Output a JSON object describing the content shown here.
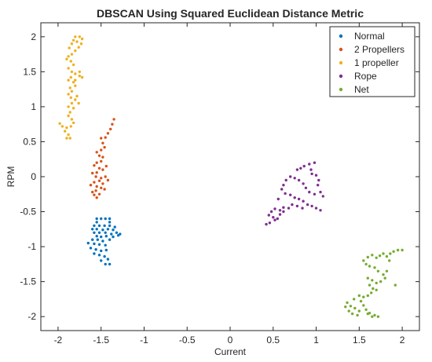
{
  "chart_data": {
    "type": "scatter",
    "title": "DBSCAN Using Squared Euclidean Distance Metric",
    "xlabel": "Current",
    "ylabel": "RPM",
    "xlim": [
      -2.2,
      2.2
    ],
    "ylim": [
      -2.2,
      2.2
    ],
    "xticks": [
      -2,
      -1.5,
      -1,
      -0.5,
      0,
      0.5,
      1,
      1.5,
      2
    ],
    "yticks": [
      -2,
      -1.5,
      -1,
      -0.5,
      0,
      0.5,
      1,
      1.5,
      2
    ],
    "xtick_labels": [
      "-2",
      "-1.5",
      "-1",
      "-0.5",
      "0",
      "0.5",
      "1",
      "1.5",
      "2"
    ],
    "ytick_labels": [
      "-2",
      "-1.5",
      "-1",
      "-0.5",
      "0",
      "0.5",
      "1",
      "1.5",
      "2"
    ],
    "grid": false,
    "legend_position": "top-right",
    "series": [
      {
        "name": "Normal",
        "color": "#0072BD",
        "points": [
          [
            -1.55,
            -0.6
          ],
          [
            -1.5,
            -0.6
          ],
          [
            -1.45,
            -0.6
          ],
          [
            -1.4,
            -0.6
          ],
          [
            -1.55,
            -0.65
          ],
          [
            -1.4,
            -0.65
          ],
          [
            -1.58,
            -0.7
          ],
          [
            -1.52,
            -0.7
          ],
          [
            -1.46,
            -0.7
          ],
          [
            -1.4,
            -0.7
          ],
          [
            -1.34,
            -0.72
          ],
          [
            -1.6,
            -0.75
          ],
          [
            -1.55,
            -0.75
          ],
          [
            -1.48,
            -0.76
          ],
          [
            -1.42,
            -0.75
          ],
          [
            -1.36,
            -0.76
          ],
          [
            -1.58,
            -0.8
          ],
          [
            -1.52,
            -0.8
          ],
          [
            -1.45,
            -0.8
          ],
          [
            -1.38,
            -0.82
          ],
          [
            -1.32,
            -0.8
          ],
          [
            -1.28,
            -0.82
          ],
          [
            -1.55,
            -0.85
          ],
          [
            -1.5,
            -0.86
          ],
          [
            -1.44,
            -0.85
          ],
          [
            -1.36,
            -0.86
          ],
          [
            -1.3,
            -0.84
          ],
          [
            -1.6,
            -0.9
          ],
          [
            -1.54,
            -0.9
          ],
          [
            -1.48,
            -0.92
          ],
          [
            -1.4,
            -0.9
          ],
          [
            -1.65,
            -0.95
          ],
          [
            -1.58,
            -0.96
          ],
          [
            -1.52,
            -0.97
          ],
          [
            -1.45,
            -0.98
          ],
          [
            -1.62,
            -1.02
          ],
          [
            -1.56,
            -1.04
          ],
          [
            -1.5,
            -1.06
          ],
          [
            -1.44,
            -1.05
          ],
          [
            -1.58,
            -1.1
          ],
          [
            -1.52,
            -1.12
          ],
          [
            -1.46,
            -1.14
          ],
          [
            -1.42,
            -1.18
          ],
          [
            -1.5,
            -1.2
          ],
          [
            -1.45,
            -1.25
          ],
          [
            -1.4,
            -1.25
          ]
        ]
      },
      {
        "name": "2 Propellers",
        "color": "#D95319",
        "points": [
          [
            -1.35,
            0.82
          ],
          [
            -1.37,
            0.75
          ],
          [
            -1.39,
            0.68
          ],
          [
            -1.42,
            0.62
          ],
          [
            -1.45,
            0.56
          ],
          [
            -1.5,
            0.55
          ],
          [
            -1.48,
            0.48
          ],
          [
            -1.46,
            0.42
          ],
          [
            -1.5,
            0.38
          ],
          [
            -1.55,
            0.35
          ],
          [
            -1.52,
            0.3
          ],
          [
            -1.48,
            0.28
          ],
          [
            -1.5,
            0.22
          ],
          [
            -1.55,
            0.2
          ],
          [
            -1.58,
            0.16
          ],
          [
            -1.52,
            0.12
          ],
          [
            -1.48,
            0.1
          ],
          [
            -1.55,
            0.06
          ],
          [
            -1.6,
            0.05
          ],
          [
            -1.56,
            0.0
          ],
          [
            -1.5,
            -0.02
          ],
          [
            -1.45,
            0.0
          ],
          [
            -1.52,
            -0.06
          ],
          [
            -1.58,
            -0.08
          ],
          [
            -1.62,
            -0.12
          ],
          [
            -1.55,
            -0.14
          ],
          [
            -1.5,
            -0.16
          ],
          [
            -1.48,
            -0.1
          ],
          [
            -1.56,
            -0.2
          ],
          [
            -1.6,
            -0.22
          ],
          [
            -1.58,
            -0.26
          ],
          [
            -1.55,
            -0.3
          ],
          [
            -1.52,
            -0.25
          ],
          [
            -1.46,
            -0.18
          ],
          [
            -1.42,
            -0.05
          ],
          [
            -1.44,
            0.15
          ]
        ]
      },
      {
        "name": "1 propeller",
        "color": "#EDB120",
        "points": [
          [
            -1.8,
            2.0
          ],
          [
            -1.75,
            2.0
          ],
          [
            -1.72,
            1.97
          ],
          [
            -1.78,
            1.93
          ],
          [
            -1.73,
            1.9
          ],
          [
            -1.76,
            1.85
          ],
          [
            -1.8,
            1.8
          ],
          [
            -1.84,
            1.75
          ],
          [
            -1.88,
            1.72
          ],
          [
            -1.9,
            1.68
          ],
          [
            -1.85,
            1.65
          ],
          [
            -1.82,
            1.6
          ],
          [
            -1.88,
            1.55
          ],
          [
            -1.84,
            1.5
          ],
          [
            -1.8,
            1.47
          ],
          [
            -1.75,
            1.44
          ],
          [
            -1.85,
            1.42
          ],
          [
            -1.88,
            1.38
          ],
          [
            -1.82,
            1.35
          ],
          [
            -1.8,
            1.3
          ],
          [
            -1.86,
            1.27
          ],
          [
            -1.84,
            1.22
          ],
          [
            -1.88,
            1.18
          ],
          [
            -1.85,
            1.13
          ],
          [
            -1.8,
            1.1
          ],
          [
            -1.84,
            1.05
          ],
          [
            -1.88,
            1.0
          ],
          [
            -1.82,
            0.98
          ],
          [
            -1.86,
            0.92
          ],
          [
            -1.88,
            0.87
          ],
          [
            -1.84,
            0.82
          ],
          [
            -1.82,
            0.77
          ],
          [
            -1.85,
            0.72
          ],
          [
            -1.9,
            0.7
          ],
          [
            -1.95,
            0.72
          ],
          [
            -1.98,
            0.76
          ],
          [
            -1.92,
            0.65
          ],
          [
            -1.88,
            0.6
          ],
          [
            -1.86,
            0.55
          ],
          [
            -1.9,
            0.55
          ],
          [
            -1.75,
            1.5
          ],
          [
            -1.72,
            1.42
          ],
          [
            -1.8,
            1.38
          ],
          [
            -1.84,
            1.9
          ],
          [
            -1.87,
            1.84
          ],
          [
            -1.82,
            1.95
          ],
          [
            -1.78,
            1.15
          ],
          [
            -1.76,
            1.05
          ]
        ]
      },
      {
        "name": "Rope",
        "color": "#7E2F8E",
        "points": [
          [
            0.98,
            0.2
          ],
          [
            0.92,
            0.18
          ],
          [
            0.86,
            0.15
          ],
          [
            0.82,
            0.12
          ],
          [
            0.78,
            0.1
          ],
          [
            0.94,
            0.1
          ],
          [
            0.95,
            0.04
          ],
          [
            1.0,
            0.02
          ],
          [
            1.03,
            -0.05
          ],
          [
            1.02,
            -0.12
          ],
          [
            1.05,
            -0.22
          ],
          [
            1.08,
            -0.28
          ],
          [
            0.98,
            -0.25
          ],
          [
            0.92,
            -0.22
          ],
          [
            0.88,
            -0.16
          ],
          [
            0.85,
            -0.1
          ],
          [
            0.8,
            -0.05
          ],
          [
            0.75,
            -0.02
          ],
          [
            0.7,
            0.0
          ],
          [
            0.65,
            -0.05
          ],
          [
            0.62,
            -0.12
          ],
          [
            0.6,
            -0.18
          ],
          [
            0.64,
            -0.24
          ],
          [
            0.7,
            -0.26
          ],
          [
            0.75,
            -0.3
          ],
          [
            0.8,
            -0.32
          ],
          [
            0.85,
            -0.35
          ],
          [
            0.9,
            -0.4
          ],
          [
            0.95,
            -0.42
          ],
          [
            1.0,
            -0.45
          ],
          [
            1.05,
            -0.48
          ],
          [
            0.84,
            -0.45
          ],
          [
            0.78,
            -0.42
          ],
          [
            0.72,
            -0.4
          ],
          [
            0.68,
            -0.45
          ],
          [
            0.62,
            -0.5
          ],
          [
            0.58,
            -0.48
          ],
          [
            0.52,
            -0.46
          ],
          [
            0.48,
            -0.5
          ],
          [
            0.45,
            -0.55
          ],
          [
            0.5,
            -0.58
          ],
          [
            0.55,
            -0.6
          ],
          [
            0.58,
            -0.54
          ],
          [
            0.52,
            -0.62
          ],
          [
            0.46,
            -0.66
          ],
          [
            0.42,
            -0.68
          ],
          [
            0.62,
            -0.44
          ],
          [
            0.56,
            -0.32
          ]
        ]
      },
      {
        "name": "Net",
        "color": "#77AC30",
        "points": [
          [
            2.0,
            -1.05
          ],
          [
            1.95,
            -1.05
          ],
          [
            1.9,
            -1.07
          ],
          [
            1.86,
            -1.1
          ],
          [
            1.82,
            -1.14
          ],
          [
            1.78,
            -1.1
          ],
          [
            1.74,
            -1.13
          ],
          [
            1.7,
            -1.16
          ],
          [
            1.65,
            -1.12
          ],
          [
            1.6,
            -1.15
          ],
          [
            1.55,
            -1.2
          ],
          [
            1.58,
            -1.25
          ],
          [
            1.62,
            -1.28
          ],
          [
            1.68,
            -1.3
          ],
          [
            1.72,
            -1.35
          ],
          [
            1.78,
            -1.4
          ],
          [
            1.8,
            -1.45
          ],
          [
            1.75,
            -1.5
          ],
          [
            1.7,
            -1.52
          ],
          [
            1.65,
            -1.48
          ],
          [
            1.6,
            -1.45
          ],
          [
            1.62,
            -1.55
          ],
          [
            1.66,
            -1.6
          ],
          [
            1.7,
            -1.62
          ],
          [
            1.64,
            -1.66
          ],
          [
            1.6,
            -1.7
          ],
          [
            1.55,
            -1.72
          ],
          [
            1.52,
            -1.78
          ],
          [
            1.55,
            -1.84
          ],
          [
            1.58,
            -1.9
          ],
          [
            1.62,
            -1.95
          ],
          [
            1.68,
            -1.98
          ],
          [
            1.72,
            -2.0
          ],
          [
            1.65,
            -2.0
          ],
          [
            1.6,
            -1.96
          ],
          [
            1.5,
            -1.92
          ],
          [
            1.45,
            -1.88
          ],
          [
            1.4,
            -1.85
          ],
          [
            1.36,
            -1.8
          ],
          [
            1.34,
            -1.86
          ],
          [
            1.38,
            -1.92
          ],
          [
            1.42,
            -1.96
          ],
          [
            1.48,
            -1.98
          ],
          [
            1.44,
            -1.75
          ],
          [
            1.5,
            -1.7
          ],
          [
            1.82,
            -1.35
          ],
          [
            1.85,
            -1.2
          ],
          [
            1.92,
            -1.55
          ]
        ]
      }
    ]
  }
}
